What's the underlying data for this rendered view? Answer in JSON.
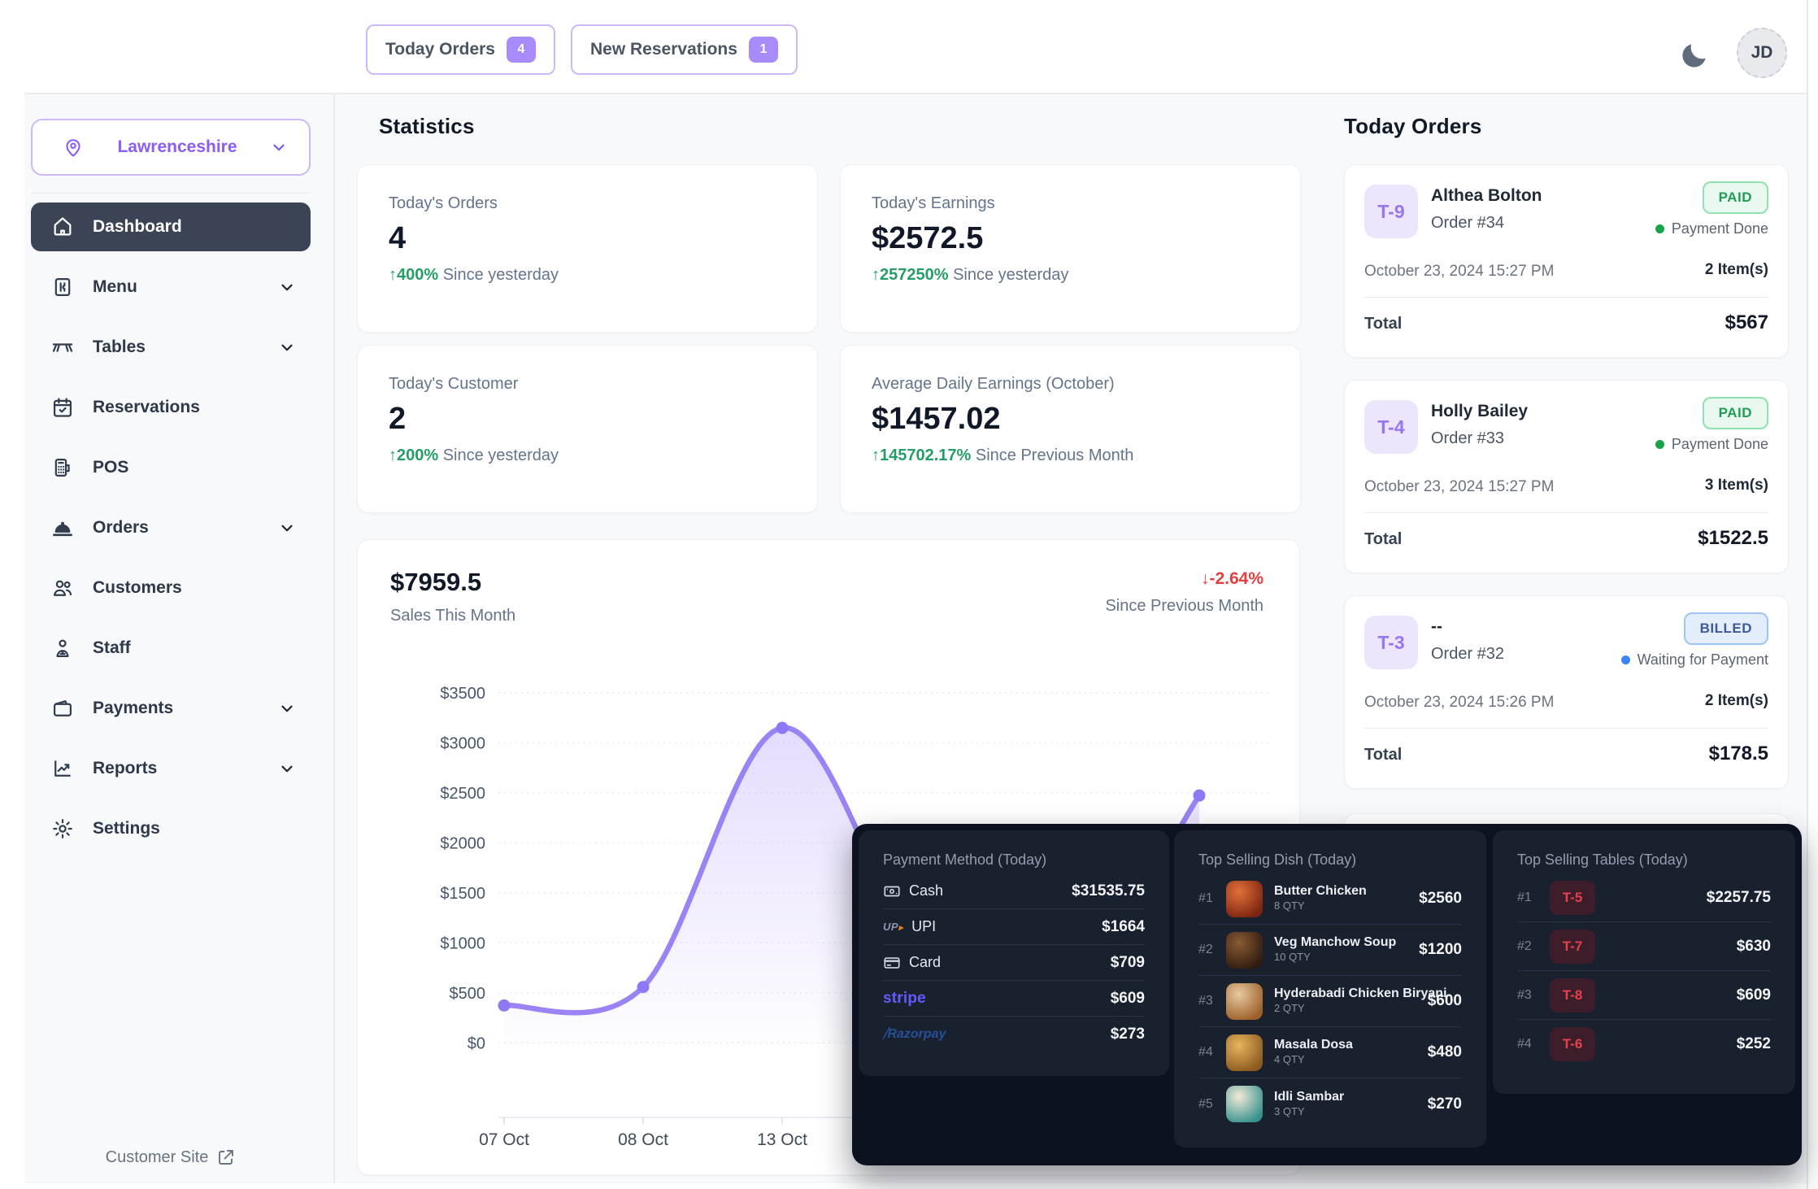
{
  "colors": {
    "accent": "#8b5cf6",
    "accent_light": "#a78bfa",
    "chart_line": "#9b83f5",
    "green": "#259d67",
    "red": "#e53e3e",
    "blue": "#3b82f6",
    "active_nav_bg": "#3b4454",
    "dark_panel_bg": "#1a212e"
  },
  "header": {
    "pills": [
      {
        "label": "Today Orders",
        "count": "4"
      },
      {
        "label": "New Reservations",
        "count": "1"
      }
    ],
    "avatar_initials": "JD"
  },
  "sidebar": {
    "location": "Lawrenceshire",
    "items": [
      {
        "label": "Dashboard"
      },
      {
        "label": "Menu"
      },
      {
        "label": "Tables"
      },
      {
        "label": "Reservations"
      },
      {
        "label": "POS"
      },
      {
        "label": "Orders"
      },
      {
        "label": "Customers"
      },
      {
        "label": "Staff"
      },
      {
        "label": "Payments"
      },
      {
        "label": "Reports"
      },
      {
        "label": "Settings"
      }
    ],
    "footer_link": "Customer Site"
  },
  "stats": {
    "title": "Statistics",
    "cards": [
      {
        "label": "Today's Orders",
        "value": "4",
        "delta": "400%",
        "delta_suffix": " Since yesterday"
      },
      {
        "label": "Today's Earnings",
        "value": "$2572.5",
        "delta": "257250%",
        "delta_suffix": " Since yesterday"
      },
      {
        "label": "Today's Customer",
        "value": "2",
        "delta": "200%",
        "delta_suffix": " Since yesterday"
      },
      {
        "label": "Average Daily Earnings (October)",
        "value": "$1457.02",
        "delta": "145702.17%",
        "delta_suffix": " Since Previous Month"
      }
    ]
  },
  "chart_data": {
    "type": "area",
    "title_value": "$7959.5",
    "title_label": "Sales This Month",
    "delta": "↓-2.64%",
    "delta_label": "Since Previous Month",
    "x_labels_visible": [
      "07 Oct",
      "08 Oct",
      "13 Oct"
    ],
    "points": [
      {
        "x": "07 Oct",
        "y": 375
      },
      {
        "x": "08 Oct",
        "y": 560
      },
      {
        "x": "13 Oct",
        "y": 3150
      },
      {
        "x": "",
        "y": 950
      },
      {
        "x": "",
        "y": 450
      },
      {
        "x": "",
        "y": 2474.5
      }
    ],
    "ylim": [
      0,
      3500
    ],
    "ytick_step": 500,
    "yprefix": "$",
    "grid": true,
    "line_color": "#9b83f5"
  },
  "today_orders": {
    "title": "Today Orders",
    "orders": [
      {
        "table": "T-9",
        "name": "Althea Bolton",
        "order_no": "Order #34",
        "status": "PAID",
        "status_type": "paid",
        "payment_note": "Payment Done",
        "datetime": "October 23, 2024 15:27 PM",
        "items": "2 Item(s)",
        "total_label": "Total",
        "total": "$567"
      },
      {
        "table": "T-4",
        "name": "Holly Bailey",
        "order_no": "Order #33",
        "status": "PAID",
        "status_type": "paid",
        "payment_note": "Payment Done",
        "datetime": "October 23, 2024 15:27 PM",
        "items": "3 Item(s)",
        "total_label": "Total",
        "total": "$1522.5"
      },
      {
        "table": "T-3",
        "name": "--",
        "order_no": "Order #32",
        "status": "BILLED",
        "status_type": "billed",
        "payment_note": "Waiting for Payment",
        "datetime": "October 23, 2024 15:26 PM",
        "items": "2 Item(s)",
        "total_label": "Total",
        "total": "$178.5"
      }
    ]
  },
  "payment_methods": {
    "title": "Payment Method (Today)",
    "rows": [
      {
        "label": "Cash",
        "value": "$31535.75"
      },
      {
        "label": "UPI",
        "value": "$1664"
      },
      {
        "label": "Card",
        "value": "$709"
      },
      {
        "label": "stripe",
        "value": "$609"
      },
      {
        "label": "Razorpay",
        "value": "$273"
      }
    ]
  },
  "top_dishes": {
    "title": "Top Selling Dish (Today)",
    "rows": [
      {
        "rank": "#1",
        "name": "Butter Chicken",
        "qty": "8 QTY",
        "value": "$2560",
        "thumb": [
          "#e2703a",
          "#7c2410"
        ]
      },
      {
        "rank": "#2",
        "name": "Veg Manchow Soup",
        "qty": "10 QTY",
        "value": "$1200",
        "thumb": [
          "#8a5a33",
          "#2f1b10"
        ]
      },
      {
        "rank": "#3",
        "name": "Hyderabadi Chicken Biryani",
        "qty": "2 QTY",
        "value": "$600",
        "thumb": [
          "#e7c9a1",
          "#9c5f28"
        ]
      },
      {
        "rank": "#4",
        "name": "Masala Dosa",
        "qty": "4 QTY",
        "value": "$480",
        "thumb": [
          "#e8b45e",
          "#8a5a1f"
        ]
      },
      {
        "rank": "#5",
        "name": "Idli Sambar",
        "qty": "3 QTY",
        "value": "$270",
        "thumb": [
          "#f3ead6",
          "#37918f"
        ]
      }
    ]
  },
  "top_tables": {
    "title": "Top Selling Tables (Today)",
    "rows": [
      {
        "rank": "#1",
        "table": "T-5",
        "value": "$2257.75"
      },
      {
        "rank": "#2",
        "table": "T-7",
        "value": "$630"
      },
      {
        "rank": "#3",
        "table": "T-8",
        "value": "$609"
      },
      {
        "rank": "#4",
        "table": "T-6",
        "value": "$252"
      }
    ]
  }
}
